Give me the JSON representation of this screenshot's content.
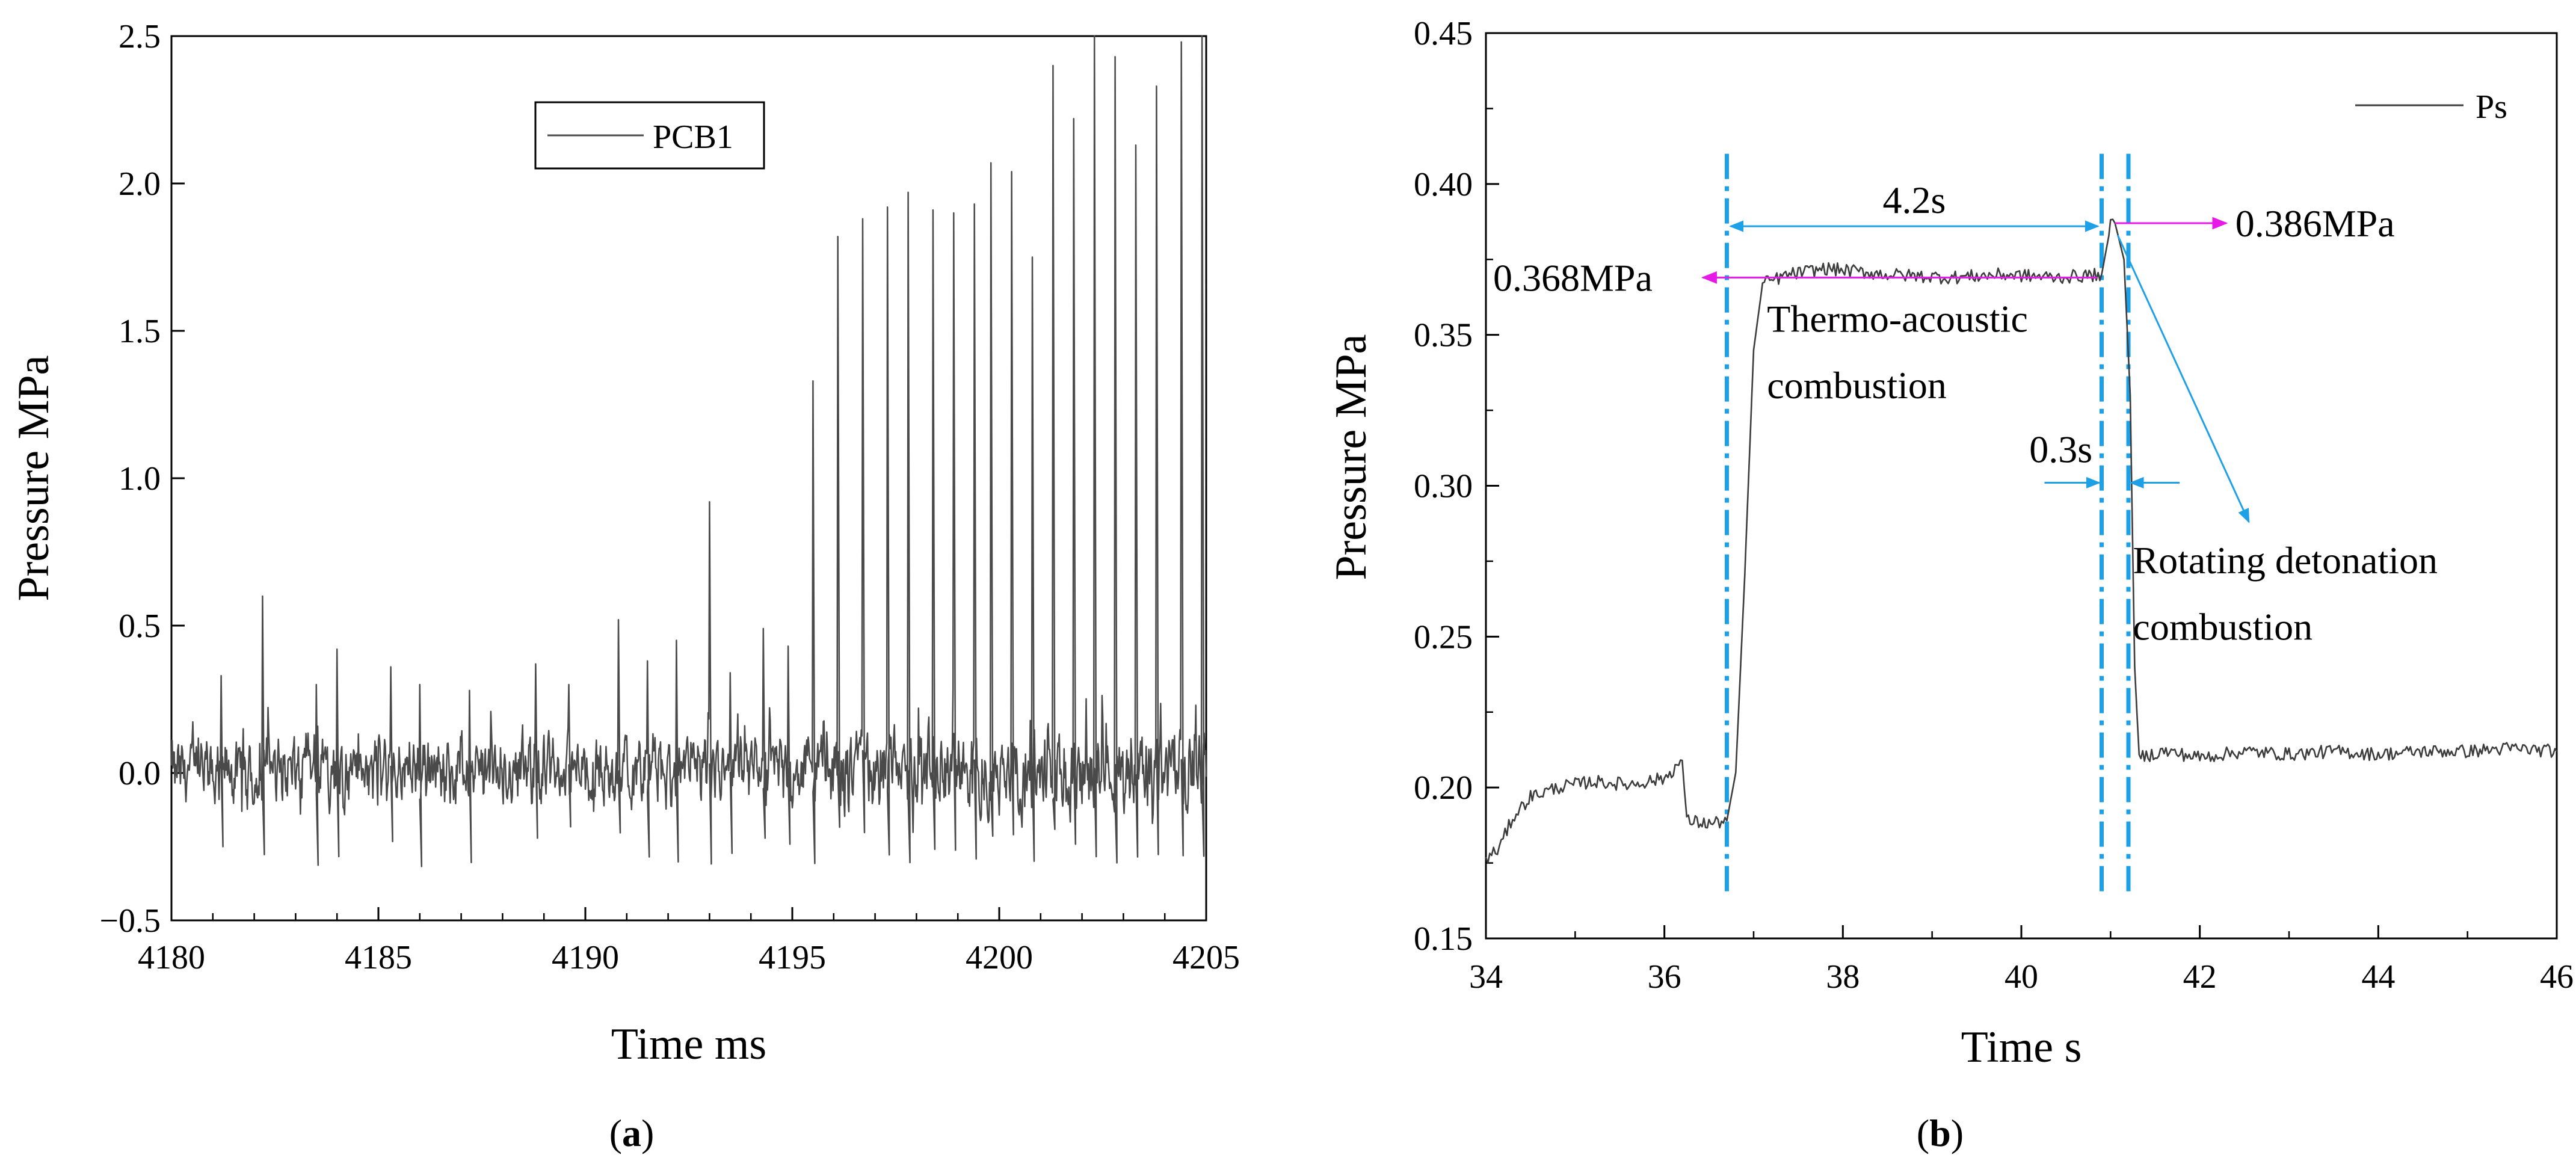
{
  "chart_data": [
    {
      "type": "line",
      "panel_label": "(a)",
      "panel_letter": "a",
      "xlabel": "Time ms",
      "ylabel": "Pressure MPa",
      "xlim": [
        4180,
        4205
      ],
      "ylim": [
        -0.5,
        2.5
      ],
      "xticks": [
        4180,
        4185,
        4190,
        4195,
        4200,
        4205
      ],
      "yticks": [
        -0.5,
        0.0,
        0.5,
        1.0,
        1.5,
        2.0,
        2.5
      ],
      "xtick_labels": [
        "4180",
        "4185",
        "4190",
        "4195",
        "4200",
        "4205"
      ],
      "ytick_labels": [
        "−0.5",
        "0.0",
        "0.5",
        "1.0",
        "1.5",
        "2.0",
        "2.5"
      ],
      "legend": [
        "PCB1"
      ],
      "legend_position": "top-center",
      "series": [
        {
          "name": "PCB1",
          "color": "#4a4a4a",
          "baseline_mean": 0.0,
          "noise_amplitude": 0.15,
          "peaks": [
            {
              "x": 4181.2,
              "y": 0.33
            },
            {
              "x": 4182.2,
              "y": 0.6
            },
            {
              "x": 4183.5,
              "y": 0.3
            },
            {
              "x": 4184.0,
              "y": 0.42
            },
            {
              "x": 4185.3,
              "y": 0.36
            },
            {
              "x": 4186.0,
              "y": 0.3
            },
            {
              "x": 4187.2,
              "y": 0.28
            },
            {
              "x": 4188.8,
              "y": 0.37
            },
            {
              "x": 4189.6,
              "y": 0.3
            },
            {
              "x": 4190.8,
              "y": 0.52
            },
            {
              "x": 4191.5,
              "y": 0.38
            },
            {
              "x": 4192.2,
              "y": 0.45
            },
            {
              "x": 4193.0,
              "y": 0.92
            },
            {
              "x": 4193.5,
              "y": 0.34
            },
            {
              "x": 4194.3,
              "y": 0.49
            },
            {
              "x": 4194.9,
              "y": 0.43
            },
            {
              "x": 4195.5,
              "y": 1.33
            },
            {
              "x": 4196.1,
              "y": 1.82
            },
            {
              "x": 4196.7,
              "y": 1.88
            },
            {
              "x": 4197.3,
              "y": 1.92
            },
            {
              "x": 4197.8,
              "y": 1.97
            },
            {
              "x": 4198.4,
              "y": 1.91
            },
            {
              "x": 4198.9,
              "y": 1.9
            },
            {
              "x": 4199.4,
              "y": 1.93
            },
            {
              "x": 4199.8,
              "y": 2.07
            },
            {
              "x": 4200.3,
              "y": 2.04
            },
            {
              "x": 4200.8,
              "y": 1.75
            },
            {
              "x": 4201.3,
              "y": 2.4
            },
            {
              "x": 4201.8,
              "y": 2.22
            },
            {
              "x": 4202.3,
              "y": 2.5
            },
            {
              "x": 4202.8,
              "y": 2.43
            },
            {
              "x": 4203.3,
              "y": 2.13
            },
            {
              "x": 4203.8,
              "y": 2.33
            },
            {
              "x": 4204.4,
              "y": 2.48
            },
            {
              "x": 4204.9,
              "y": 2.5
            }
          ]
        }
      ]
    },
    {
      "type": "line",
      "panel_label": "(b)",
      "panel_letter": "b",
      "xlabel": "Time s",
      "ylabel": "Pressure MPa",
      "xlim": [
        34,
        46
      ],
      "ylim": [
        0.15,
        0.45
      ],
      "xticks": [
        34,
        36,
        38,
        40,
        42,
        44,
        46
      ],
      "yticks": [
        0.15,
        0.2,
        0.25,
        0.3,
        0.35,
        0.4,
        0.45
      ],
      "xtick_labels": [
        "34",
        "36",
        "38",
        "40",
        "42",
        "44",
        "46"
      ],
      "ytick_labels": [
        "0.15",
        "0.20",
        "0.25",
        "0.30",
        "0.35",
        "0.40",
        "0.45"
      ],
      "legend": [
        "Ps"
      ],
      "legend_position": "top-right",
      "series": [
        {
          "name": "Ps",
          "color": "#3c3c3c",
          "points": [
            [
              34.0,
              0.176
            ],
            [
              34.15,
              0.18
            ],
            [
              34.3,
              0.19
            ],
            [
              34.5,
              0.197
            ],
            [
              34.8,
              0.2
            ],
            [
              35.2,
              0.202
            ],
            [
              35.6,
              0.201
            ],
            [
              36.0,
              0.203
            ],
            [
              36.2,
              0.209
            ],
            [
              36.25,
              0.189
            ],
            [
              36.5,
              0.188
            ],
            [
              36.7,
              0.189
            ],
            [
              36.8,
              0.205
            ],
            [
              36.9,
              0.27
            ],
            [
              37.0,
              0.345
            ],
            [
              37.1,
              0.367
            ],
            [
              37.4,
              0.37
            ],
            [
              37.8,
              0.372
            ],
            [
              38.5,
              0.37
            ],
            [
              39.2,
              0.369
            ],
            [
              39.8,
              0.37
            ],
            [
              40.4,
              0.369
            ],
            [
              40.9,
              0.37
            ],
            [
              41.0,
              0.386
            ],
            [
              41.05,
              0.387
            ],
            [
              41.15,
              0.375
            ],
            [
              41.22,
              0.33
            ],
            [
              41.27,
              0.24
            ],
            [
              41.32,
              0.21
            ],
            [
              41.6,
              0.212
            ],
            [
              42.0,
              0.21
            ],
            [
              42.5,
              0.212
            ],
            [
              43.0,
              0.211
            ],
            [
              43.5,
              0.212
            ],
            [
              44.0,
              0.211
            ],
            [
              44.5,
              0.212
            ],
            [
              45.0,
              0.212
            ],
            [
              45.5,
              0.213
            ],
            [
              46.0,
              0.212
            ]
          ]
        }
      ],
      "vlines": [
        36.7,
        40.9,
        41.2
      ],
      "annotations": {
        "duration_label": "4.2s",
        "duration_range": [
          36.7,
          40.9
        ],
        "duration_y": 0.386,
        "gap_label": "0.3s",
        "gap_range": [
          40.9,
          41.2
        ],
        "gap_y": 0.301,
        "left_value": "0.368MPa",
        "left_value_y": 0.369,
        "right_value": "0.386MPa",
        "right_value_y": 0.387,
        "region1_line1": "Thermo-acoustic",
        "region1_line2": "combustion",
        "region2_line1": "Rotating detonation",
        "region2_line2": "combustion"
      },
      "colors": {
        "guide": "#1ea0e6",
        "value_arrow": "#e619e6"
      }
    }
  ]
}
